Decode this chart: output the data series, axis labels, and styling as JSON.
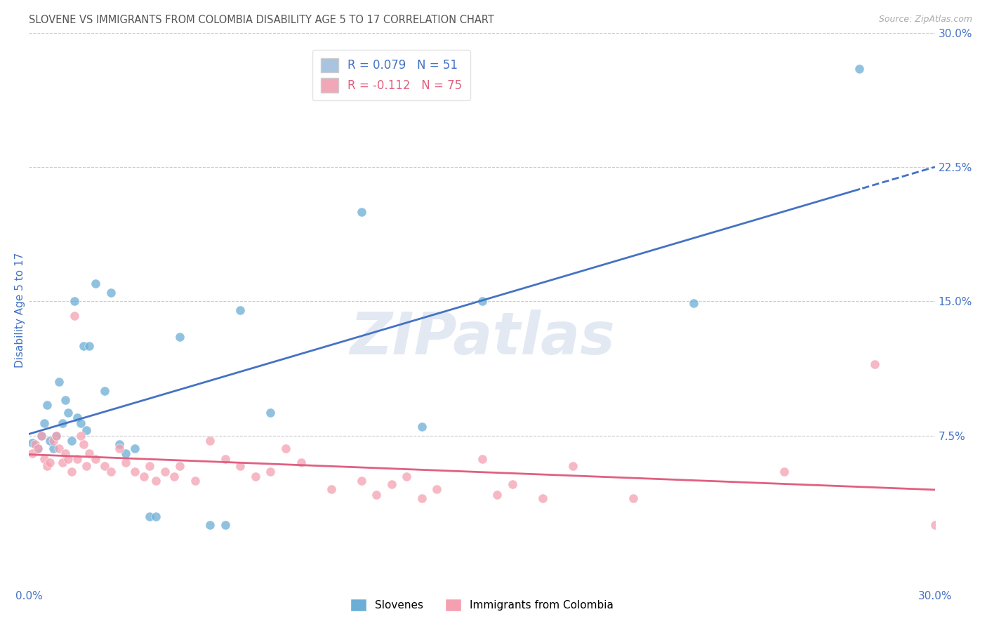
{
  "title": "SLOVENE VS IMMIGRANTS FROM COLOMBIA DISABILITY AGE 5 TO 17 CORRELATION CHART",
  "source": "Source: ZipAtlas.com",
  "xlabel": "",
  "ylabel": "Disability Age 5 to 17",
  "x_min": 0.0,
  "x_max": 0.3,
  "y_min": 0.0,
  "y_max": 0.3,
  "x_ticks": [
    0.0,
    0.05,
    0.1,
    0.15,
    0.2,
    0.25,
    0.3
  ],
  "right_y_ticks": [
    0.075,
    0.15,
    0.225,
    0.3
  ],
  "right_y_tick_labels": [
    "7.5%",
    "15.0%",
    "22.5%",
    "30.0%"
  ],
  "legend_color1": "#a8c4e0",
  "legend_color2": "#f0a8b8",
  "watermark": "ZIPatlas",
  "background_color": "#ffffff",
  "grid_color": "#cccccc",
  "slovene_color": "#6baed6",
  "colombia_color": "#f4a0b0",
  "trend_blue": "#4472c4",
  "trend_pink": "#e06080",
  "axis_label_color": "#4472c4",
  "r_color1": "#4472c4",
  "r_color2": "#e06080",
  "slovene_points": [
    [
      0.001,
      0.071
    ],
    [
      0.003,
      0.068
    ],
    [
      0.004,
      0.075
    ],
    [
      0.005,
      0.082
    ],
    [
      0.006,
      0.092
    ],
    [
      0.007,
      0.072
    ],
    [
      0.008,
      0.068
    ],
    [
      0.009,
      0.075
    ],
    [
      0.01,
      0.105
    ],
    [
      0.011,
      0.082
    ],
    [
      0.012,
      0.095
    ],
    [
      0.013,
      0.088
    ],
    [
      0.014,
      0.072
    ],
    [
      0.015,
      0.15
    ],
    [
      0.016,
      0.085
    ],
    [
      0.017,
      0.082
    ],
    [
      0.018,
      0.125
    ],
    [
      0.019,
      0.078
    ],
    [
      0.02,
      0.125
    ],
    [
      0.022,
      0.16
    ],
    [
      0.025,
      0.1
    ],
    [
      0.027,
      0.155
    ],
    [
      0.03,
      0.07
    ],
    [
      0.032,
      0.065
    ],
    [
      0.035,
      0.068
    ],
    [
      0.04,
      0.03
    ],
    [
      0.042,
      0.03
    ],
    [
      0.05,
      0.13
    ],
    [
      0.06,
      0.025
    ],
    [
      0.065,
      0.025
    ],
    [
      0.07,
      0.145
    ],
    [
      0.08,
      0.088
    ],
    [
      0.11,
      0.2
    ],
    [
      0.13,
      0.08
    ],
    [
      0.15,
      0.15
    ],
    [
      0.22,
      0.149
    ],
    [
      0.275,
      0.28
    ]
  ],
  "colombia_points": [
    [
      0.001,
      0.065
    ],
    [
      0.002,
      0.07
    ],
    [
      0.003,
      0.068
    ],
    [
      0.004,
      0.075
    ],
    [
      0.005,
      0.062
    ],
    [
      0.006,
      0.058
    ],
    [
      0.007,
      0.06
    ],
    [
      0.008,
      0.072
    ],
    [
      0.009,
      0.075
    ],
    [
      0.01,
      0.068
    ],
    [
      0.011,
      0.06
    ],
    [
      0.012,
      0.065
    ],
    [
      0.013,
      0.062
    ],
    [
      0.014,
      0.055
    ],
    [
      0.015,
      0.142
    ],
    [
      0.016,
      0.062
    ],
    [
      0.017,
      0.075
    ],
    [
      0.018,
      0.07
    ],
    [
      0.019,
      0.058
    ],
    [
      0.02,
      0.065
    ],
    [
      0.022,
      0.062
    ],
    [
      0.025,
      0.058
    ],
    [
      0.027,
      0.055
    ],
    [
      0.03,
      0.068
    ],
    [
      0.032,
      0.06
    ],
    [
      0.035,
      0.055
    ],
    [
      0.038,
      0.052
    ],
    [
      0.04,
      0.058
    ],
    [
      0.042,
      0.05
    ],
    [
      0.045,
      0.055
    ],
    [
      0.048,
      0.052
    ],
    [
      0.05,
      0.058
    ],
    [
      0.055,
      0.05
    ],
    [
      0.06,
      0.072
    ],
    [
      0.065,
      0.062
    ],
    [
      0.07,
      0.058
    ],
    [
      0.075,
      0.052
    ],
    [
      0.08,
      0.055
    ],
    [
      0.085,
      0.068
    ],
    [
      0.09,
      0.06
    ],
    [
      0.1,
      0.045
    ],
    [
      0.11,
      0.05
    ],
    [
      0.115,
      0.042
    ],
    [
      0.12,
      0.048
    ],
    [
      0.125,
      0.052
    ],
    [
      0.13,
      0.04
    ],
    [
      0.135,
      0.045
    ],
    [
      0.15,
      0.062
    ],
    [
      0.155,
      0.042
    ],
    [
      0.16,
      0.048
    ],
    [
      0.17,
      0.04
    ],
    [
      0.18,
      0.058
    ],
    [
      0.2,
      0.04
    ],
    [
      0.25,
      0.055
    ],
    [
      0.28,
      0.115
    ],
    [
      0.3,
      0.025
    ]
  ]
}
